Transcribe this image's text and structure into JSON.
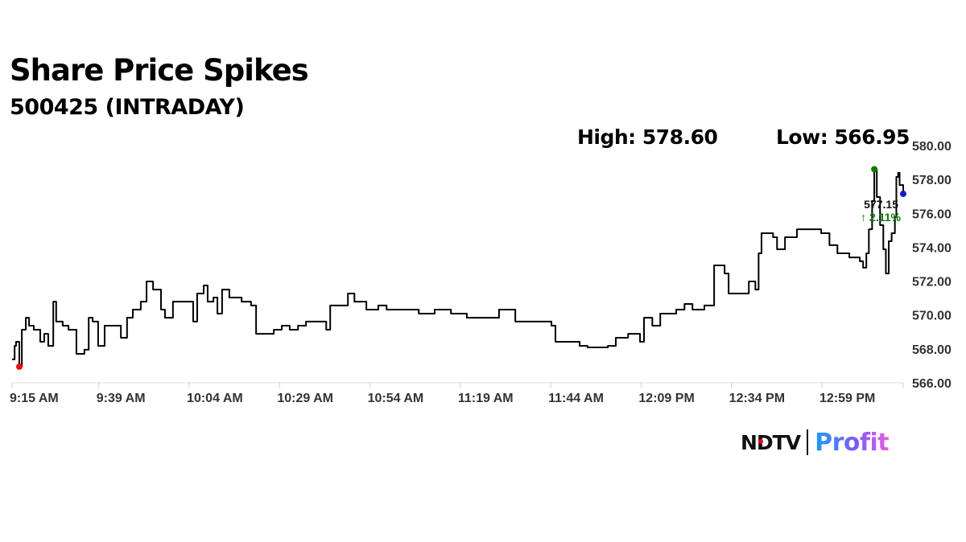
{
  "chart_data": {
    "type": "line",
    "title": "Share Price Spikes",
    "subtitle": "500425 (INTRADAY)",
    "high_label": "High: 578.60",
    "low_label": "Low: 566.95",
    "high": 578.6,
    "low": 566.95,
    "last_price_label": "577.15",
    "change_label": "↑ 2.11%",
    "xlabel": "",
    "ylabel": "",
    "ylim": [
      566,
      580
    ],
    "xlim": [
      "09:15:00",
      "13:21:30"
    ],
    "y_ticks": [
      "566.00",
      "568.00",
      "570.00",
      "572.00",
      "574.00",
      "576.00",
      "578.00",
      "580.00"
    ],
    "x_ticks": [
      {
        "time": "09:15:00",
        "label": "9:15 AM"
      },
      {
        "time": "09:39:00",
        "label": "9:39 AM"
      },
      {
        "time": "10:04:00",
        "label": "10:04 AM"
      },
      {
        "time": "10:29:00",
        "label": "10:29 AM"
      },
      {
        "time": "10:54:00",
        "label": "10:54 AM"
      },
      {
        "time": "11:19:00",
        "label": "11:19 AM"
      },
      {
        "time": "11:44:00",
        "label": "11:44 AM"
      },
      {
        "time": "12:09:00",
        "label": "12:09 PM"
      },
      {
        "time": "12:34:00",
        "label": "12:34 PM"
      },
      {
        "time": "12:59:00",
        "label": "12:59 PM"
      },
      {
        "time": "13:21:30",
        "label": ""
      }
    ],
    "grid": false,
    "colors": {
      "line": "#000000",
      "high_marker": "#0a7a0a",
      "low_marker": "#e81010",
      "last_marker": "#1a1acc",
      "change": "#0a7a0a"
    },
    "x": [
      "09:15:00",
      "09:15:42",
      "09:16:06",
      "09:17:00",
      "09:17:42",
      "09:18:48",
      "09:19:42",
      "09:21:00",
      "09:22:48",
      "09:23:54",
      "09:25:00",
      "09:26:24",
      "09:27:12",
      "09:29:00",
      "09:30:36",
      "09:32:48",
      "09:35:00",
      "09:36:12",
      "09:37:18",
      "09:38:48",
      "09:40:36",
      "09:44:36",
      "09:45:06",
      "09:46:48",
      "09:48:24",
      "09:50:36",
      "09:52:12",
      "09:54:00",
      "09:56:12",
      "09:57:18",
      "09:59:30",
      "10:04:00",
      "10:05:06",
      "10:06:12",
      "10:08:00",
      "10:09:06",
      "10:10:42",
      "10:11:48",
      "10:13:06",
      "10:15:06",
      "10:18:30",
      "10:21:06",
      "10:22:30",
      "10:25:12",
      "10:27:24",
      "10:29:36",
      "10:31:48",
      "10:34:06",
      "10:36:18",
      "10:39:36",
      "10:41:54",
      "10:43:00",
      "10:45:12",
      "10:47:54",
      "10:49:42",
      "10:53:00",
      "10:56:18",
      "10:58:36",
      "11:03:00",
      "11:07:30",
      "11:11:54",
      "11:16:24",
      "11:20:48",
      "11:25:18",
      "11:29:42",
      "11:32:24",
      "11:34:12",
      "11:38:42",
      "11:44:12",
      "11:45:18",
      "11:47:36",
      "11:52:00",
      "11:54:12",
      "11:59:48",
      "12:02:00",
      "12:05:24",
      "12:08:42",
      "12:09:48",
      "12:12:06",
      "12:14:18",
      "12:18:42",
      "12:21:00",
      "12:23:12",
      "12:26:30",
      "12:28:18",
      "12:29:12",
      "12:32:06",
      "12:33:12",
      "12:36:36",
      "12:38:48",
      "12:40:36",
      "12:41:30",
      "12:42:18",
      "12:45:30",
      "12:46:36",
      "12:48:48",
      "12:52:06",
      "12:56:36",
      "12:58:48",
      "13:01:06",
      "13:03:18",
      "13:06:36",
      "13:09:30",
      "13:10:24",
      "13:11:18",
      "13:12:00",
      "13:12:54",
      "13:13:30",
      "13:14:12",
      "13:15:06",
      "13:16:00",
      "13:16:42",
      "13:17:30",
      "13:18:18",
      "13:19:12",
      "13:19:36",
      "13:20:06",
      "13:20:30",
      "13:21:30"
    ],
    "y": [
      567.38,
      568.18,
      568.42,
      566.95,
      569.13,
      569.84,
      569.37,
      569.13,
      568.42,
      568.89,
      568.18,
      570.79,
      569.61,
      569.37,
      569.13,
      567.71,
      567.95,
      569.84,
      569.61,
      568.18,
      569.37,
      569.37,
      568.66,
      569.84,
      570.32,
      570.79,
      571.98,
      571.5,
      570.32,
      569.84,
      570.79,
      570.79,
      569.61,
      571.27,
      571.74,
      570.79,
      571.03,
      570.08,
      571.5,
      571.03,
      570.79,
      570.56,
      568.89,
      568.89,
      569.13,
      569.37,
      569.13,
      569.37,
      569.61,
      569.61,
      569.13,
      570.56,
      570.56,
      571.27,
      570.79,
      570.32,
      570.56,
      570.32,
      570.32,
      570.08,
      570.32,
      570.08,
      569.84,
      569.84,
      570.32,
      570.32,
      569.61,
      569.61,
      569.37,
      568.42,
      568.42,
      568.18,
      568.09,
      568.18,
      568.66,
      568.89,
      568.42,
      569.84,
      569.37,
      570.08,
      570.32,
      570.65,
      570.32,
      570.56,
      570.56,
      572.93,
      572.45,
      571.27,
      571.27,
      571.98,
      571.5,
      573.64,
      574.83,
      574.59,
      573.88,
      574.59,
      575.06,
      575.06,
      574.83,
      574.12,
      573.64,
      573.4,
      573.17,
      572.79,
      573.64,
      575.06,
      576.73,
      578.6,
      576.96,
      575.3,
      573.88,
      572.45,
      574.35,
      574.83,
      575.78,
      578.15,
      578.39,
      577.67,
      577.15
    ]
  },
  "logo": {
    "brand": "NDTV",
    "product": "Profit"
  }
}
